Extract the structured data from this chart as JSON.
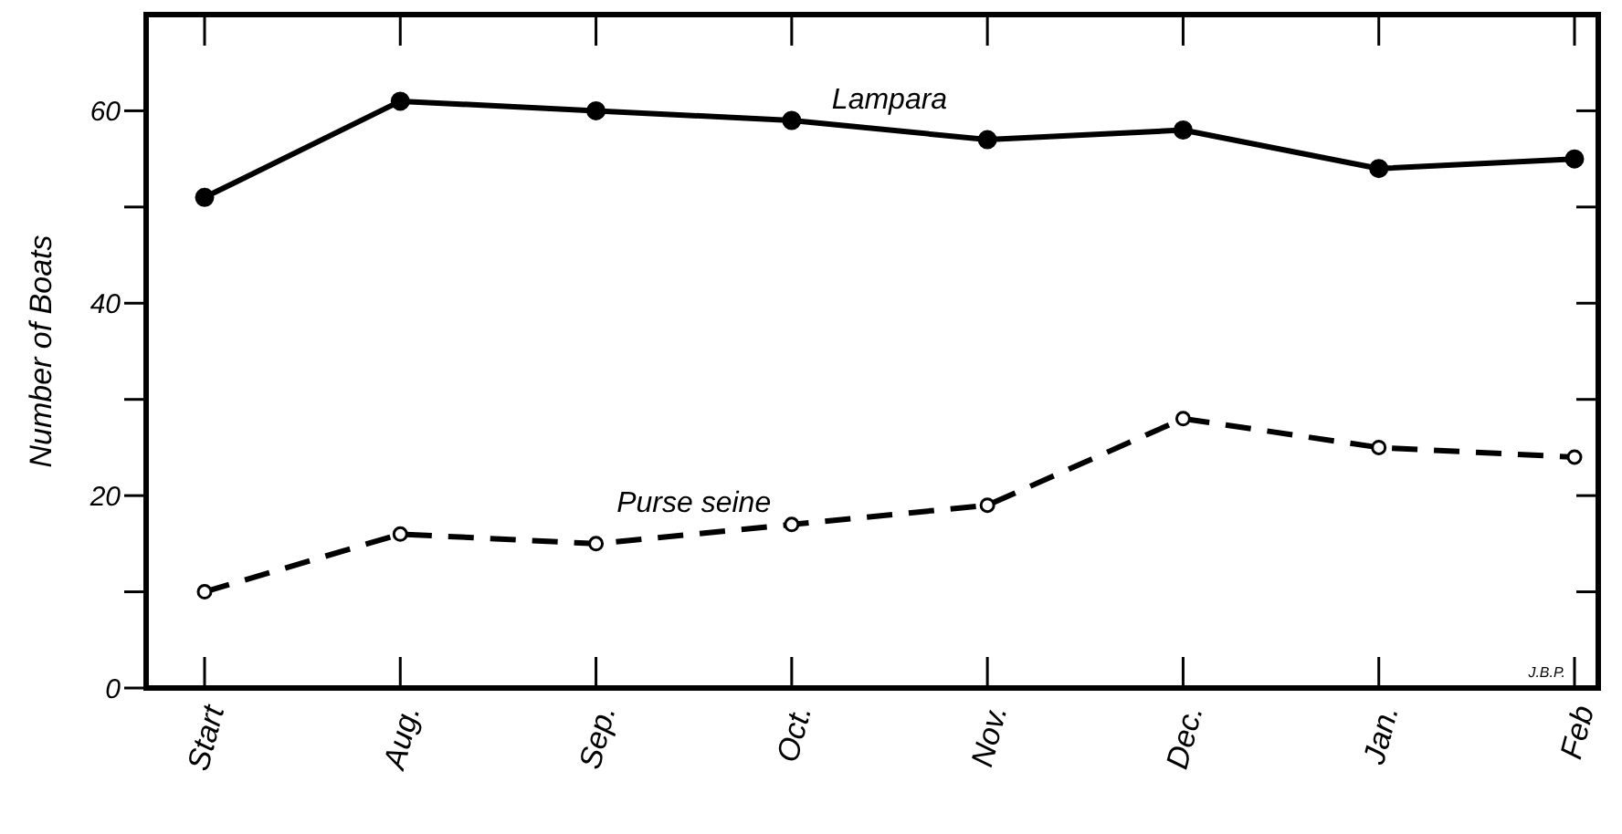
{
  "chart_data": {
    "type": "line",
    "ylabel": "Number of Boats",
    "categories": [
      "Start",
      "Aug.",
      "Sep.",
      "Oct.",
      "Nov.",
      "Dec.",
      "Jan.",
      "Feb"
    ],
    "series": [
      {
        "name": "Lampara",
        "color": "#000000",
        "line_style": "solid",
        "values": [
          51,
          61,
          60,
          59,
          57,
          58,
          54,
          55
        ]
      },
      {
        "name": "Purse seine",
        "color": "#000000",
        "line_style": "dashed",
        "values": [
          10,
          16,
          15,
          17,
          19,
          28,
          25,
          24
        ]
      }
    ],
    "ylim": [
      0,
      70
    ],
    "yticks": [
      0,
      {
        "value": 10,
        "label": null
      },
      20,
      {
        "value": 30,
        "label": null
      },
      40,
      {
        "value": 50,
        "label": null
      },
      60
    ],
    "marker": "circle",
    "grid": false,
    "annotations": [
      "J.B.P."
    ]
  }
}
